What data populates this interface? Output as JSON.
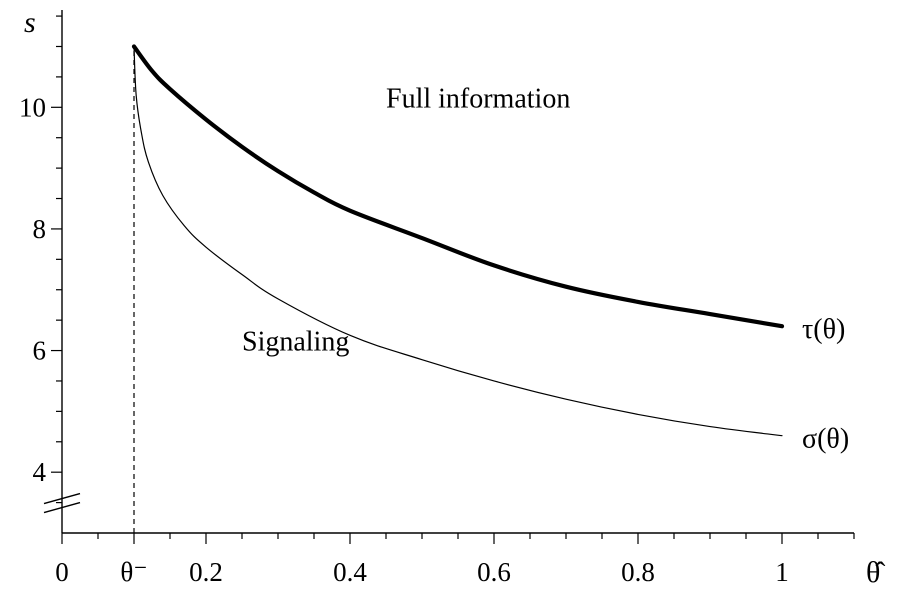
{
  "chart_data": {
    "type": "line",
    "title": "",
    "xlabel": "θ̂",
    "ylabel": "s",
    "xlim": [
      0,
      1.1
    ],
    "ylim": [
      3.0,
      11.6
    ],
    "x_axis_break": false,
    "y_axis_break": true,
    "x_ticks": [
      {
        "value": 0,
        "label": "0"
      },
      {
        "value": 0.1,
        "label": "θ⁻"
      },
      {
        "value": 0.2,
        "label": "0.2"
      },
      {
        "value": 0.4,
        "label": "0.4"
      },
      {
        "value": 0.6,
        "label": "0.6"
      },
      {
        "value": 0.8,
        "label": "0.8"
      },
      {
        "value": 1.0,
        "label": "1"
      }
    ],
    "y_ticks": [
      {
        "value": 4,
        "label": "4"
      },
      {
        "value": 6,
        "label": "6"
      },
      {
        "value": 8,
        "label": "8"
      },
      {
        "value": 10,
        "label": "10"
      }
    ],
    "vertical_reference_line": {
      "x": 0.1,
      "style": "dashed"
    },
    "series": [
      {
        "name": "τ(θ)",
        "style": "thick",
        "color": "#000000",
        "x": [
          0.1,
          0.125,
          0.15,
          0.2,
          0.25,
          0.3,
          0.35,
          0.4,
          0.5,
          0.6,
          0.7,
          0.8,
          0.9,
          1.0
        ],
        "y": [
          11.0,
          10.6,
          10.3,
          9.8,
          9.35,
          8.95,
          8.6,
          8.3,
          7.85,
          7.4,
          7.05,
          6.8,
          6.6,
          6.4
        ]
      },
      {
        "name": "σ(θ)",
        "style": "thin",
        "color": "#000000",
        "x": [
          0.1,
          0.103,
          0.11,
          0.12,
          0.14,
          0.17,
          0.2,
          0.25,
          0.3,
          0.4,
          0.5,
          0.6,
          0.7,
          0.8,
          0.9,
          1.0
        ],
        "y": [
          11.0,
          10.2,
          9.6,
          9.1,
          8.55,
          8.05,
          7.7,
          7.25,
          6.85,
          6.25,
          5.85,
          5.5,
          5.2,
          4.95,
          4.75,
          4.6
        ]
      }
    ],
    "annotations": [
      {
        "text": "Full information",
        "x": 0.45,
        "y": 10.0
      },
      {
        "text": "Signaling",
        "x": 0.25,
        "y": 6.0
      }
    ]
  }
}
